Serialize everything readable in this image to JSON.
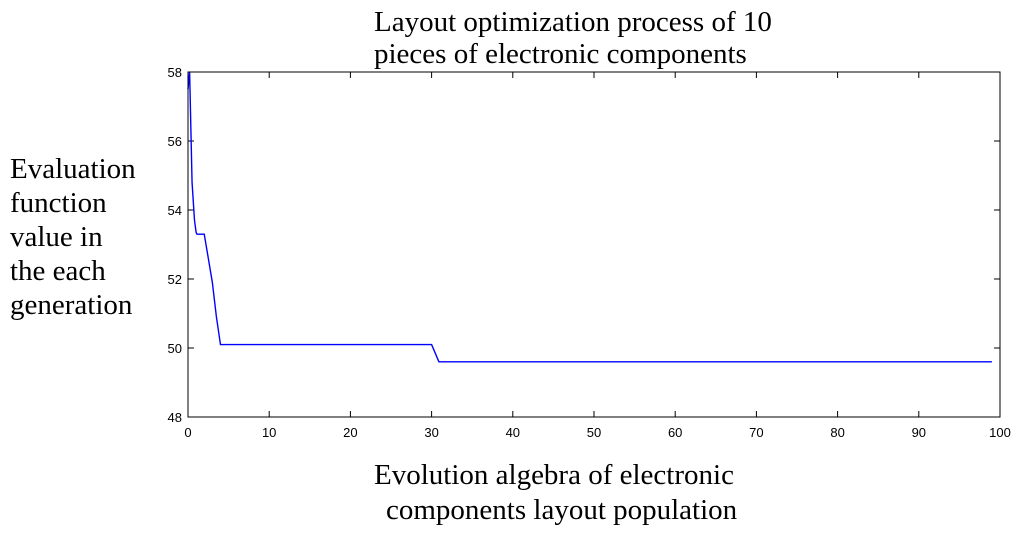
{
  "chart_data": {
    "type": "line",
    "title_lines": [
      "Layout optimization process of 10",
      "pieces of electronic components"
    ],
    "xlabel_lines": [
      "Evolution algebra of electronic",
      "components layout population"
    ],
    "ylabel_lines": [
      "Evaluation",
      "function",
      "value in",
      "the each",
      "generation"
    ],
    "xlim": [
      0,
      100
    ],
    "ylim": [
      48,
      58
    ],
    "xticks": [
      0,
      10,
      20,
      30,
      40,
      50,
      60,
      70,
      80,
      90,
      100
    ],
    "yticks": [
      48,
      50,
      52,
      54,
      56,
      58
    ],
    "grid": false,
    "line_color": "#0000ff",
    "series": [
      {
        "x": [
          0,
          0.2,
          0.5,
          0.8,
          1,
          1.1,
          2,
          2.5,
          3,
          3.5,
          4,
          30,
          30.9,
          99
        ],
        "y": [
          57.5,
          58,
          54.8,
          53.7,
          53.35,
          53.3,
          53.3,
          52.6,
          51.9,
          50.9,
          50.1,
          50.1,
          49.6,
          49.6
        ]
      }
    ]
  }
}
